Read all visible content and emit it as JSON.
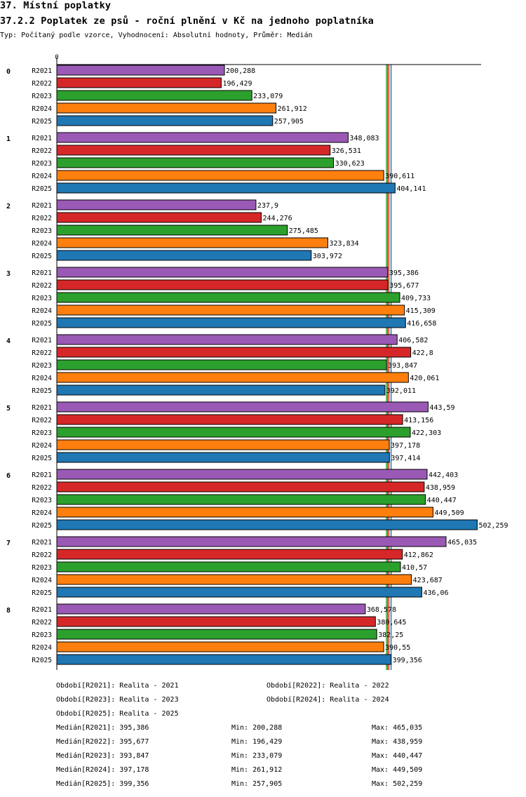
{
  "header": {
    "title": "37. Místní poplatky",
    "subtitle": "37.2.2 Poplatek ze psů - roční plnění v Kč na jednoho poplatníka",
    "type_line": "Typ: Počítaný podle vzorce, Vyhodnocení: Absolutní hodnoty, Průměr: Medián"
  },
  "chart_data": {
    "type": "bar",
    "orientation": "horizontal",
    "title": "37.2.2 Poplatek ze psů - roční plnění v Kč na jednoho poplatníka",
    "axis_zero_label": "0",
    "xlim": [
      0,
      510
    ],
    "categories": [
      "0",
      "1",
      "2",
      "3",
      "4",
      "5",
      "6",
      "7",
      "8"
    ],
    "series": [
      {
        "name": "R2021",
        "color": "#9b59b6",
        "values": [
          200.288,
          348.083,
          237.9,
          395.386,
          406.582,
          443.59,
          442.403,
          465.035,
          368.578
        ],
        "labels": [
          "200,288",
          "348,083",
          "237,9",
          "395,386",
          "406,582",
          "443,59",
          "442,403",
          "465,035",
          "368,578"
        ]
      },
      {
        "name": "R2022",
        "color": "#d62728",
        "values": [
          196.429,
          326.531,
          244.276,
          395.677,
          422.8,
          413.156,
          438.959,
          412.862,
          380.645
        ],
        "labels": [
          "196,429",
          "326,531",
          "244,276",
          "395,677",
          "422,8",
          "413,156",
          "438,959",
          "412,862",
          "380,645"
        ]
      },
      {
        "name": "R2023",
        "color": "#2ca02c",
        "values": [
          233.079,
          330.623,
          275.485,
          409.733,
          393.847,
          422.303,
          440.447,
          410.57,
          382.25
        ],
        "labels": [
          "233,079",
          "330,623",
          "275,485",
          "409,733",
          "393,847",
          "422,303",
          "440,447",
          "410,57",
          "382,25"
        ]
      },
      {
        "name": "R2024",
        "color": "#ff7f0e",
        "values": [
          261.912,
          390.611,
          323.834,
          415.309,
          420.061,
          397.178,
          449.509,
          423.687,
          390.55
        ],
        "labels": [
          "261,912",
          "390,611",
          "323,834",
          "415,309",
          "420,061",
          "397,178",
          "449,509",
          "423,687",
          "390,55"
        ]
      },
      {
        "name": "R2025",
        "color": "#1f77b4",
        "values": [
          257.905,
          404.141,
          303.972,
          416.658,
          392.011,
          397.414,
          502.259,
          436.06,
          399.356
        ],
        "labels": [
          "257,905",
          "404,141",
          "303,972",
          "416,658",
          "392,011",
          "397,414",
          "502,259",
          "436,06",
          "399,356"
        ]
      }
    ],
    "median_lines": [
      {
        "series": "R2021",
        "value": 395.386,
        "color": "#9b59b6"
      },
      {
        "series": "R2022",
        "value": 395.677,
        "color": "#d62728"
      },
      {
        "series": "R2023",
        "value": 393.847,
        "color": "#2ca02c"
      },
      {
        "series": "R2024",
        "value": 397.178,
        "color": "#ff7f0e"
      },
      {
        "series": "R2025",
        "value": 399.356,
        "color": "#1f77b4"
      }
    ]
  },
  "legend": {
    "periods": [
      "Období[R2021]: Realita - 2021",
      "Období[R2022]: Realita - 2022",
      "Období[R2023]: Realita - 2023",
      "Období[R2024]: Realita - 2024",
      "Období[R2025]: Realita - 2025"
    ],
    "stats": [
      {
        "median": "Medián[R2021]: 395,386",
        "min": "Min: 200,288",
        "max": "Max: 465,035"
      },
      {
        "median": "Medián[R2022]: 395,677",
        "min": "Min: 196,429",
        "max": "Max: 438,959"
      },
      {
        "median": "Medián[R2023]: 393,847",
        "min": "Min: 233,079",
        "max": "Max: 440,447"
      },
      {
        "median": "Medián[R2024]: 397,178",
        "min": "Min: 261,912",
        "max": "Max: 449,509"
      },
      {
        "median": "Medián[R2025]: 399,356",
        "min": "Min: 257,905",
        "max": "Max: 502,259"
      }
    ]
  }
}
